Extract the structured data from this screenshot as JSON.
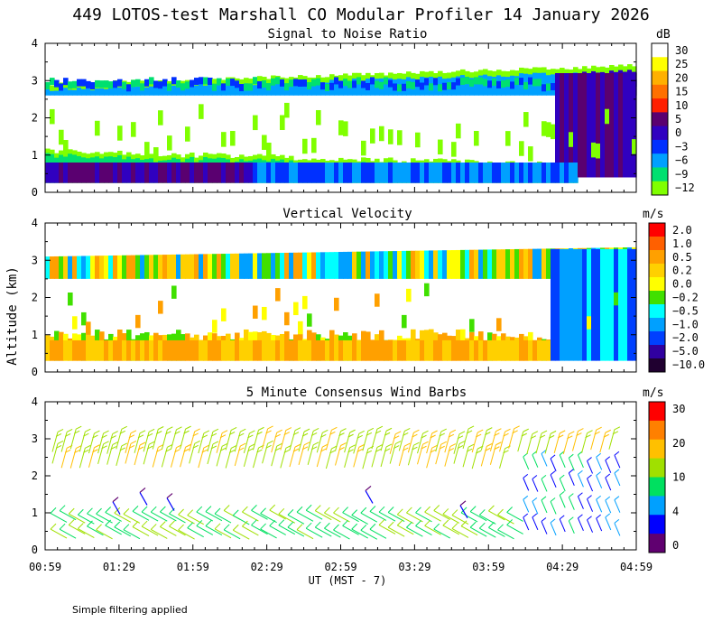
{
  "title": "449 LOTOS-test Marshall CO Modular Profiler 14 January 2026",
  "footer_note": "Simple filtering applied",
  "chart_data": [
    {
      "id": "snr",
      "type": "heatmap",
      "title": "Signal to Noise Ratio",
      "ylabel": "Altitude (km)",
      "xlabel": "",
      "ylim": [
        0,
        4
      ],
      "yticks": [
        "0",
        "1",
        "2",
        "3",
        "4"
      ],
      "colorbar": {
        "unit": "dB",
        "labels": [
          "30",
          "25",
          "20",
          "15",
          "10",
          "5",
          "0",
          "−3",
          "−6",
          "−9",
          "−12"
        ],
        "colors": [
          "#ffffff",
          "#ffff00",
          "#ffb000",
          "#ff7000",
          "#ff2000",
          "#5a0070",
          "#3000c0",
          "#0030ff",
          "#00a0ff",
          "#00e070",
          "#80ff00"
        ]
      }
    },
    {
      "id": "vv",
      "type": "heatmap",
      "title": "Vertical Velocity",
      "ylabel": "Altitude (km)",
      "xlabel": "",
      "ylim": [
        0,
        4
      ],
      "yticks": [
        "0",
        "1",
        "2",
        "3",
        "4"
      ],
      "colorbar": {
        "unit": "m/s",
        "labels": [
          "2.0",
          "1.0",
          "0.5",
          "0.2",
          "0.0",
          "−0.2",
          "−0.5",
          "−1.0",
          "−2.0",
          "−5.0",
          "−10.0"
        ],
        "colors": [
          "#ff0000",
          "#ff6000",
          "#ffa000",
          "#ffd000",
          "#ffff00",
          "#40e000",
          "#00ffff",
          "#00a0ff",
          "#0040ff",
          "#3000a0",
          "#200030"
        ]
      }
    },
    {
      "id": "wind",
      "type": "scatter",
      "title": "5 Minute Consensus Wind Barbs",
      "ylabel": "Altitude (km)",
      "xlabel": "UT  (MST - 7)",
      "ylim": [
        0,
        4
      ],
      "yticks": [
        "0",
        "1",
        "2",
        "3",
        "4"
      ],
      "colorbar": {
        "unit": "m/s",
        "labels": [
          "30",
          "20",
          "10",
          "4",
          "0"
        ],
        "colors": [
          "#ff0000",
          "#ff8000",
          "#ffc000",
          "#a0e000",
          "#00e060",
          "#00a0ff",
          "#0000ff",
          "#600070"
        ]
      }
    }
  ],
  "time_axis": {
    "ticks": [
      "00:59",
      "01:29",
      "01:59",
      "02:29",
      "02:59",
      "03:29",
      "03:59",
      "04:29",
      "04:59"
    ]
  }
}
